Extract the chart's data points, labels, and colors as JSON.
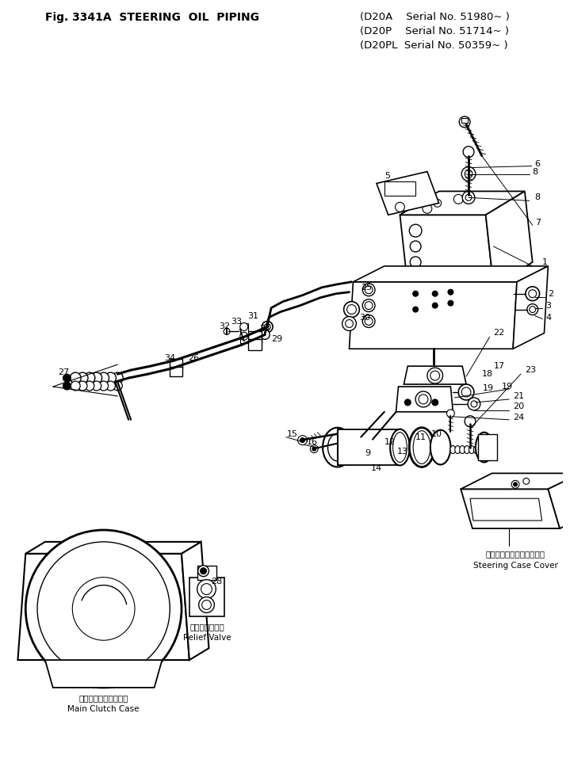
{
  "title_line1": "Fig. 3341A  STEERING  OIL  PIPING",
  "title_right1": "(D20A    Serial No. 51980~ )",
  "title_right2": "(D20P    Serial No. 51714~ )",
  "title_right3": "(D20PL  Serial No. 50359~ )",
  "bg_color": "#ffffff",
  "text_color": "#000000",
  "fig_width": 7.19,
  "fig_height": 9.82,
  "dpi": 100
}
